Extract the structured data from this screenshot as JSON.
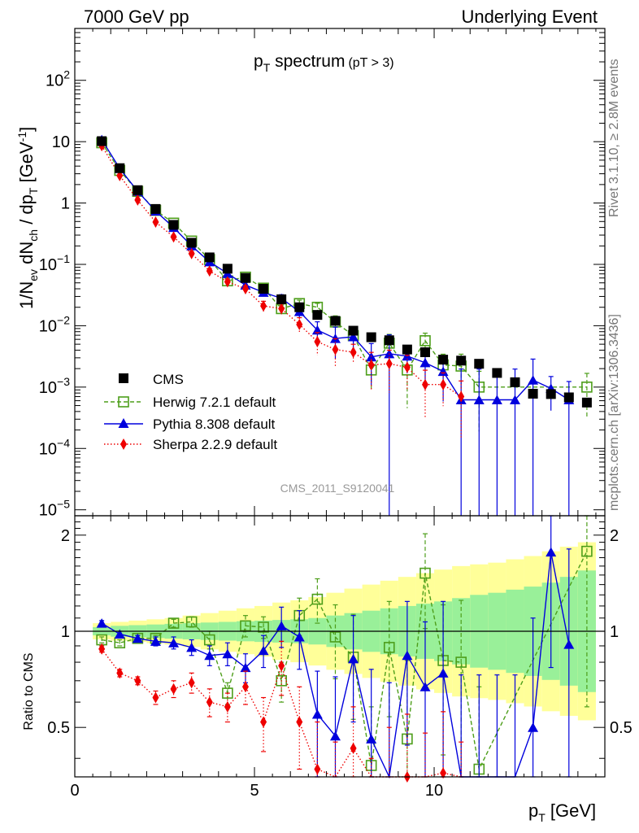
{
  "header": {
    "left": "7000 GeV pp",
    "right": "Underlying Event"
  },
  "side_labels": {
    "rivet": "Rivet 3.1.10, ≥ 2.8M events",
    "mcplots": "mcplots.cern.ch [arXiv:1306.3436]"
  },
  "chart_data": {
    "type": "scatter",
    "title": "p",
    "title_sub": "T",
    "title_rest": " spectrum",
    "title_small": "(pT >  3)",
    "watermark": "CMS_2011_S9120041",
    "xlabel": "p",
    "xlabel_sub": "T",
    "xlabel_unit": " [GeV]",
    "ylabel_parts": [
      "1/N",
      "ev",
      " dN",
      "ch",
      " / dp",
      "T",
      " [GeV",
      "-1",
      "]"
    ],
    "ratio_ylabel": "Ratio to CMS",
    "xlim": [
      0,
      14.75
    ],
    "ylim": [
      8e-06,
      700
    ],
    "ratio_ylim": [
      0.35,
      2.3
    ],
    "yscale": "log",
    "x_ticks": [
      0,
      5,
      10
    ],
    "y_tick_labels": [
      "10",
      "1",
      "10^-1",
      "10^-2",
      "10^-3",
      "10^-4",
      "10^-5",
      "10^2"
    ],
    "ratio_ticks": [
      "0.5",
      "1",
      "2"
    ],
    "legend_position": "bottom-left",
    "legend": [
      "CMS",
      "Herwig 7.2.1 default",
      "Pythia 8.308 default",
      "Sherpa 2.2.9 default"
    ],
    "x": [
      0.75,
      1.25,
      1.75,
      2.25,
      2.75,
      3.25,
      3.75,
      4.25,
      4.75,
      5.25,
      5.75,
      6.25,
      6.75,
      7.25,
      7.75,
      8.25,
      8.75,
      9.25,
      9.75,
      10.25,
      10.75,
      11.25,
      11.75,
      12.25,
      12.75,
      13.25,
      13.75,
      14.25
    ],
    "cms": [
      10.2,
      3.7,
      1.62,
      0.8,
      0.44,
      0.225,
      0.13,
      0.085,
      0.06,
      0.04,
      0.027,
      0.02,
      0.015,
      0.012,
      0.0083,
      0.0065,
      0.0058,
      0.0041,
      0.0037,
      0.0028,
      0.0027,
      0.0024,
      0.0017,
      0.0012,
      0.00078,
      0.00077,
      0.00068,
      0.00056
    ],
    "cms_band_inner": [
      1.03,
      1.04,
      1.045,
      1.05,
      1.055,
      1.06,
      1.065,
      1.07,
      1.075,
      1.08,
      1.085,
      1.09,
      1.1,
      1.12,
      1.14,
      1.16,
      1.18,
      1.2,
      1.22,
      1.24,
      1.27,
      1.3,
      1.32,
      1.35,
      1.38,
      1.42,
      1.48,
      1.55
    ],
    "cms_band_outer": [
      1.06,
      1.07,
      1.08,
      1.09,
      1.1,
      1.12,
      1.14,
      1.16,
      1.18,
      1.2,
      1.23,
      1.25,
      1.28,
      1.32,
      1.36,
      1.4,
      1.44,
      1.48,
      1.52,
      1.56,
      1.6,
      1.62,
      1.64,
      1.68,
      1.72,
      1.78,
      1.84,
      1.9
    ],
    "series": [
      {
        "name": "Herwig 7.2.1 default",
        "color": "#4d9e1a",
        "marker": "open-square",
        "line": "dashed",
        "x": [
          0.75,
          1.25,
          1.75,
          2.25,
          2.75,
          3.25,
          3.75,
          4.25,
          4.75,
          5.25,
          5.75,
          6.25,
          6.75,
          7.25,
          7.75,
          8.25,
          8.75,
          9.25,
          9.75,
          10.25,
          10.75,
          11.25,
          14.25
        ],
        "values": [
          9.6,
          3.4,
          1.55,
          0.76,
          0.47,
          0.24,
          0.12,
          0.054,
          0.062,
          0.041,
          0.019,
          0.023,
          0.02,
          0.0115,
          0.0069,
          0.0019,
          0.0052,
          0.0019,
          0.0057,
          0.0023,
          0.0022,
          0.001,
          0.001
        ],
        "ratio": [
          0.94,
          0.92,
          0.95,
          0.95,
          1.06,
          1.07,
          0.94,
          0.64,
          1.04,
          1.03,
          0.7,
          1.12,
          1.26,
          0.96,
          0.83,
          0.38,
          0.89,
          0.46,
          1.52,
          0.81,
          0.8,
          0.37,
          1.78
        ],
        "ratio_err": [
          0.02,
          0.02,
          0.02,
          0.02,
          0.03,
          0.04,
          0.06,
          0.05,
          0.08,
          0.08,
          0.1,
          0.15,
          0.2,
          0.25,
          0.3,
          0.2,
          0.35,
          0.35,
          0.5,
          0.4,
          0.45,
          0.3,
          1.2
        ]
      },
      {
        "name": "Pythia 8.308 default",
        "color": "#0000dd",
        "marker": "triangle",
        "line": "solid",
        "x": [
          0.75,
          1.25,
          1.75,
          2.25,
          2.75,
          3.25,
          3.75,
          4.25,
          4.75,
          5.25,
          5.75,
          6.25,
          6.75,
          7.25,
          7.75,
          8.25,
          8.75,
          9.25,
          9.75,
          10.25,
          10.75,
          11.25,
          11.75,
          12.25,
          12.75,
          13.25,
          13.75
        ],
        "values": [
          10.8,
          3.65,
          1.55,
          0.74,
          0.4,
          0.2,
          0.11,
          0.071,
          0.046,
          0.035,
          0.028,
          0.017,
          0.0085,
          0.0062,
          0.0066,
          0.0031,
          0.0035,
          0.0032,
          0.0025,
          0.0018,
          0.00062,
          0.00062,
          0.00062,
          0.00062,
          0.0013,
          0.00095,
          0.00062
        ],
        "ratio": [
          1.06,
          0.98,
          0.95,
          0.93,
          0.92,
          0.89,
          0.84,
          0.85,
          0.77,
          0.87,
          1.04,
          0.96,
          0.55,
          0.47,
          0.82,
          0.46,
          0.34,
          0.84,
          0.67,
          0.74,
          0.23,
          0.23,
          0.23,
          0.23,
          0.5,
          1.77,
          0.91
        ],
        "ratio_err": [
          0.02,
          0.02,
          0.02,
          0.03,
          0.04,
          0.05,
          0.06,
          0.07,
          0.08,
          0.1,
          0.15,
          0.2,
          0.2,
          0.25,
          0.3,
          0.3,
          0.35,
          0.4,
          0.4,
          0.5,
          0.5,
          0.5,
          0.5,
          0.5,
          0.6,
          1.0,
          0.9
        ]
      },
      {
        "name": "Sherpa 2.2.9 default",
        "color": "#ee0000",
        "marker": "diamond",
        "line": "dotted",
        "x": [
          0.75,
          1.25,
          1.75,
          2.25,
          2.75,
          3.25,
          3.75,
          4.25,
          4.75,
          5.25,
          5.75,
          6.25,
          6.75,
          7.25,
          7.75,
          8.25,
          8.75,
          9.25,
          9.75,
          10.25,
          10.75
        ],
        "values": [
          8.6,
          2.8,
          1.12,
          0.49,
          0.28,
          0.15,
          0.078,
          0.052,
          0.04,
          0.021,
          0.019,
          0.0105,
          0.0055,
          0.0041,
          0.0037,
          0.0023,
          0.0024,
          0.0021,
          0.0011,
          0.0011,
          0.0007
        ],
        "ratio": [
          0.88,
          0.74,
          0.7,
          0.62,
          0.66,
          0.69,
          0.6,
          0.58,
          0.67,
          0.52,
          0.78,
          0.52,
          0.37,
          0.3,
          0.43,
          0.25,
          0.3,
          0.35,
          0.28,
          0.36,
          0.25
        ],
        "ratio_err": [
          0.02,
          0.02,
          0.02,
          0.03,
          0.04,
          0.05,
          0.06,
          0.06,
          0.08,
          0.1,
          0.15,
          0.15,
          0.15,
          0.15,
          0.15,
          0.15,
          0.2,
          0.2,
          0.2,
          0.2,
          0.2
        ]
      }
    ]
  }
}
